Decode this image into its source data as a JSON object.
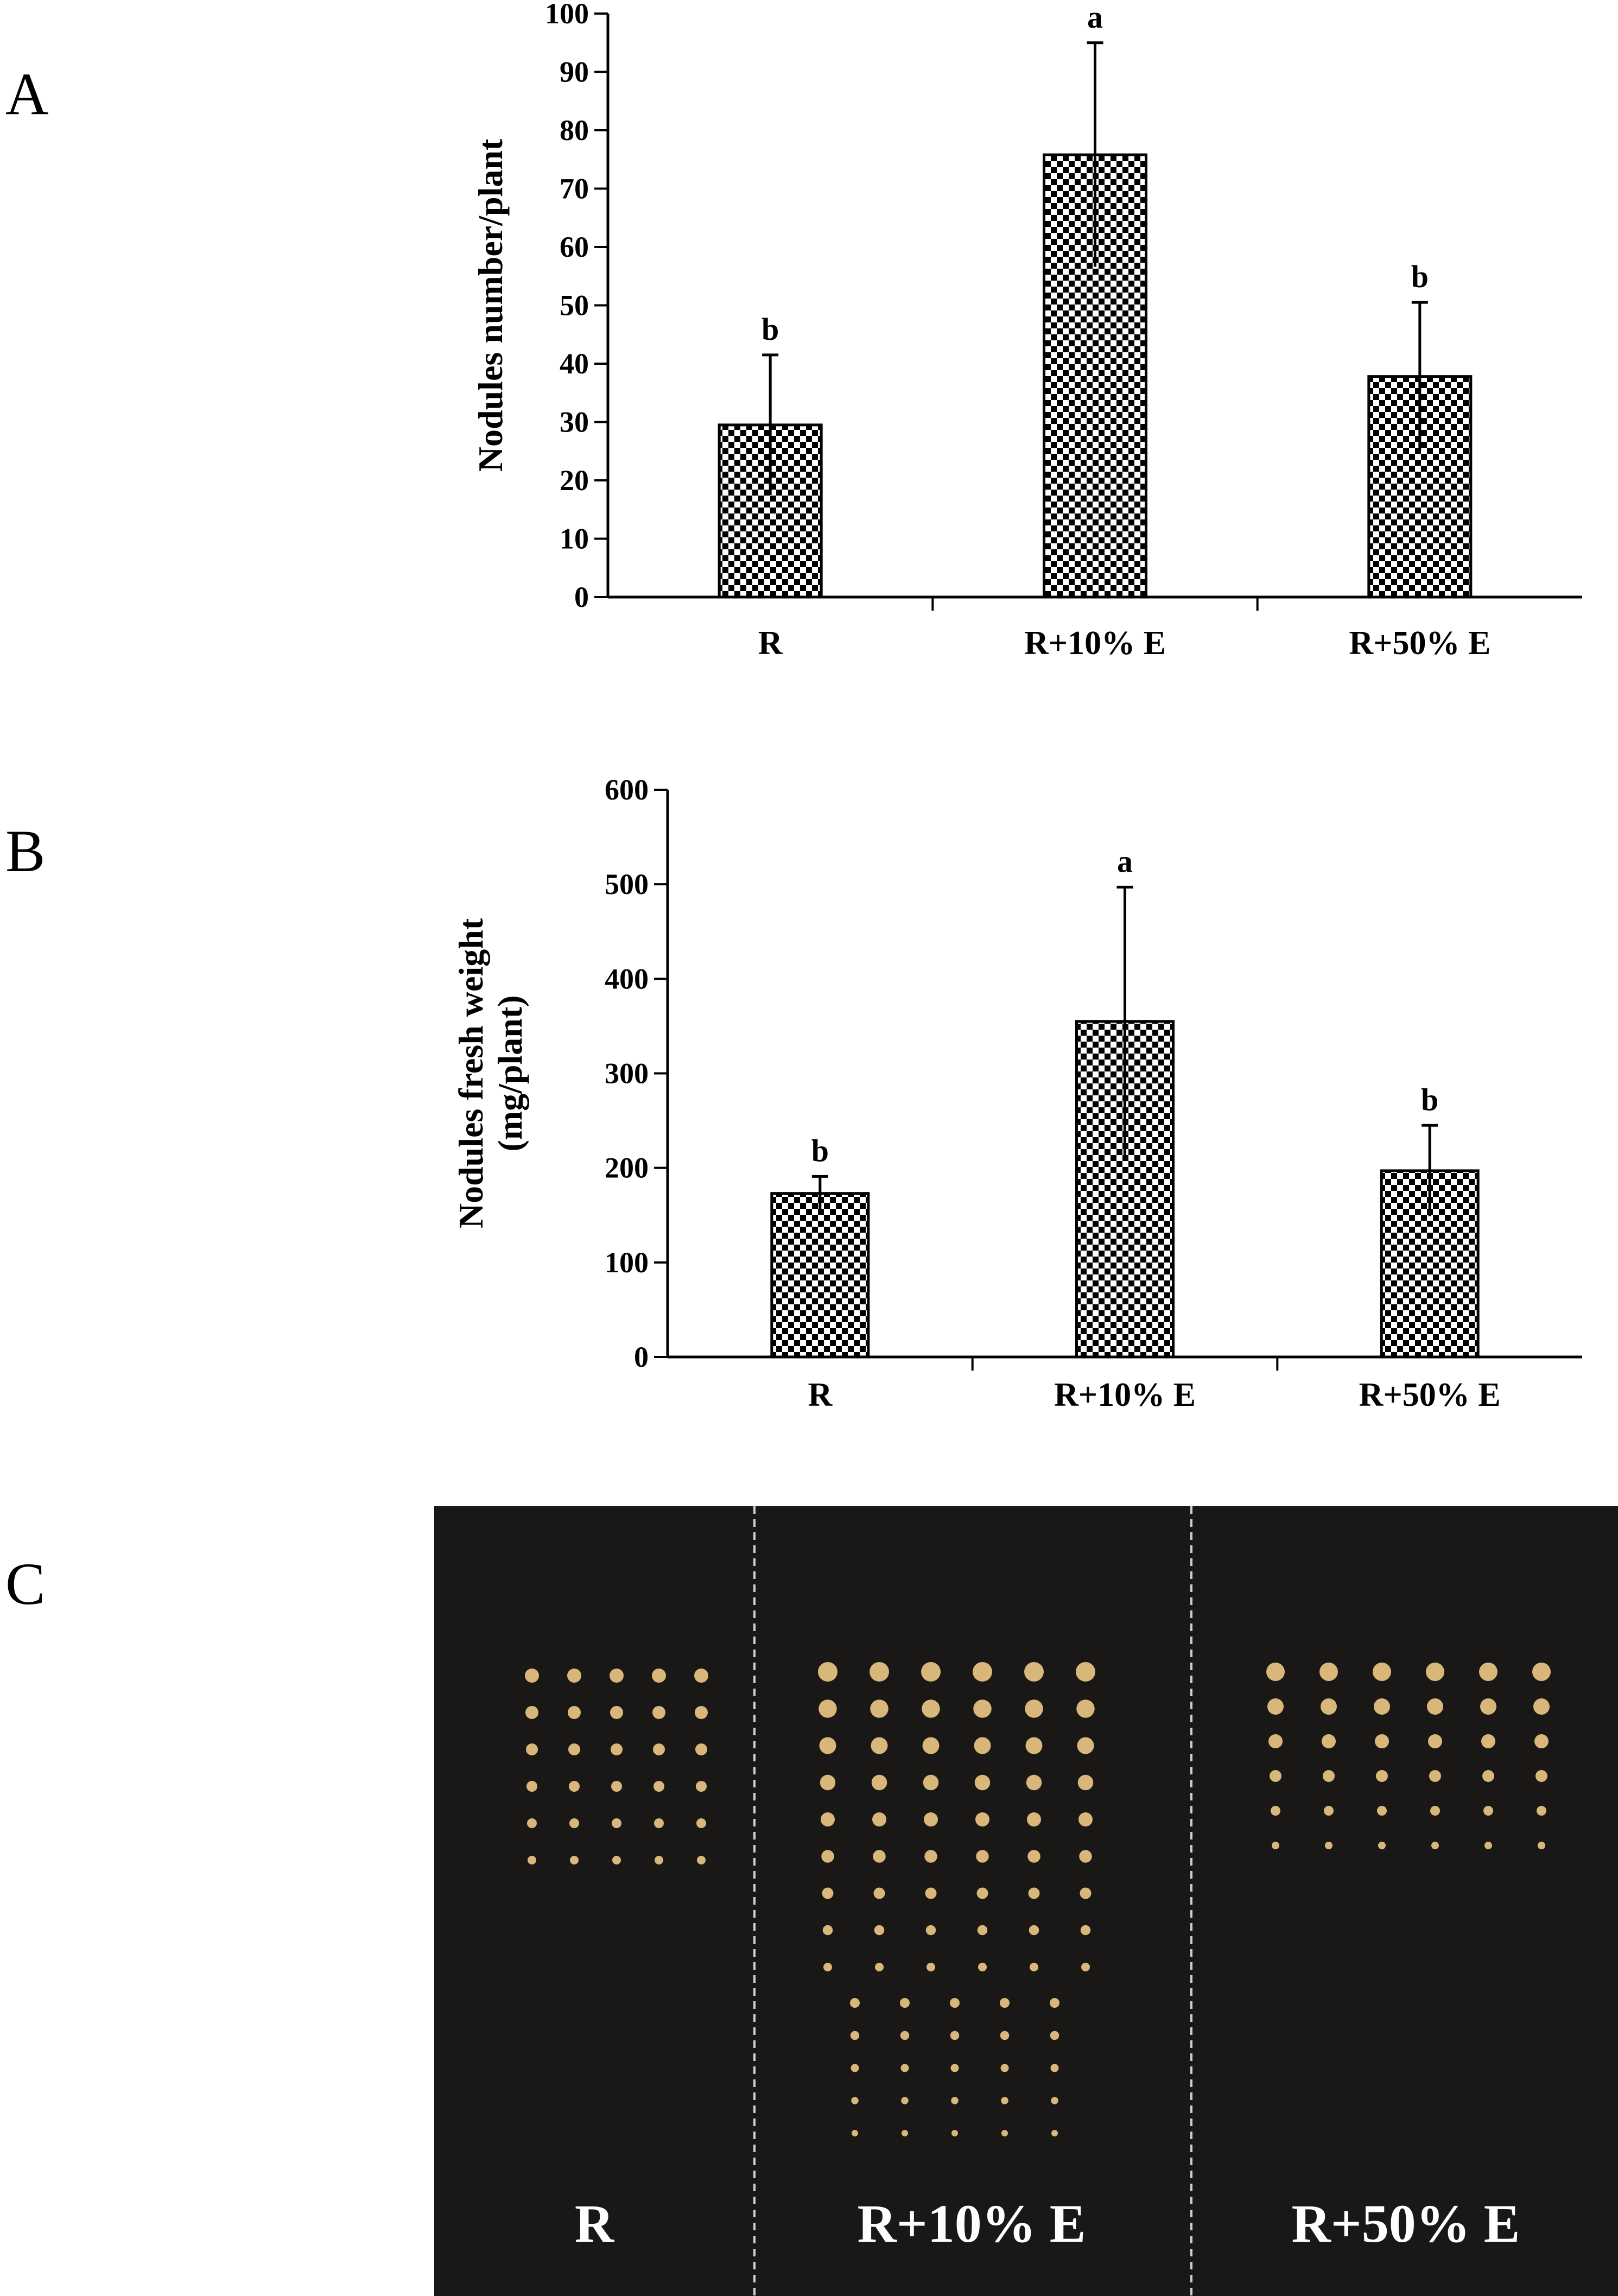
{
  "panels": {
    "a": "A",
    "b": "B",
    "c": "C"
  },
  "colors": {
    "bar_pattern_dark": "#000000",
    "bar_pattern_light": "#ffffff",
    "photo_background": "#1a1816",
    "nodule_color": "#d9b77a",
    "divider_color": "#cfcfcf"
  },
  "chart_data": [
    {
      "type": "bar",
      "categories": [
        "R",
        "R+10% E",
        "R+50% E"
      ],
      "values": [
        29.5,
        75.8,
        37.8
      ],
      "errors": [
        12.0,
        19.2,
        12.7
      ],
      "significance": [
        "b",
        "a",
        "b"
      ],
      "ylabel": "Nodules number/plant",
      "ylim": [
        0,
        100
      ],
      "yticks": [
        "0",
        "10",
        "20",
        "30",
        "40",
        "50",
        "60",
        "70",
        "80",
        "90",
        "100"
      ],
      "bar_fill": "black-white checkerboard",
      "grid": false
    },
    {
      "type": "bar",
      "categories": [
        "R",
        "R+10% E",
        "R+50% E"
      ],
      "values": [
        173,
        355,
        197
      ],
      "errors": [
        18,
        142,
        48
      ],
      "significance": [
        "b",
        "a",
        "b"
      ],
      "ylabel_lines": [
        "Nodules fresh weight",
        "(mg/plant)"
      ],
      "ylim": [
        0,
        600
      ],
      "yticks": [
        "0",
        "100",
        "200",
        "300",
        "400",
        "500",
        "600"
      ],
      "bar_fill": "black-white checkerboard",
      "grid": false
    }
  ],
  "photo": {
    "labels": [
      "R",
      "R+10% E",
      "R+50% E"
    ]
  }
}
